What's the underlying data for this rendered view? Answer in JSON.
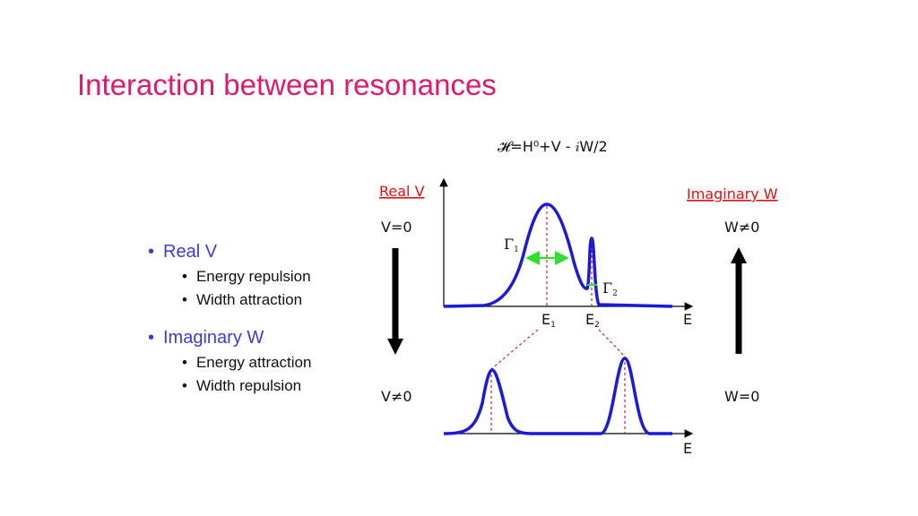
{
  "title": "Interaction between resonances",
  "bullets": [
    {
      "text": "Real V",
      "items": [
        "Energy repulsion",
        "Width attraction"
      ]
    },
    {
      "text": "Imaginary W",
      "items": [
        "Energy attraction",
        "Width repulsion"
      ]
    }
  ],
  "diagram": {
    "formula": "𝓗=H⁰+V - 𝑖W/2",
    "left_header": "Real V",
    "right_header": "Imaginary W",
    "left_top": "V=0",
    "left_bottom": "V≠0",
    "right_top": "W≠0",
    "right_bottom": "W=0",
    "gamma1": {
      "symbol": "Γ",
      "sub": "1"
    },
    "gamma2": {
      "symbol": "Γ",
      "sub": "2"
    },
    "e1": {
      "symbol": "E",
      "sub": "1"
    },
    "e2": {
      "symbol": "E",
      "sub": "2"
    },
    "axis_top": "E",
    "axis_bottom": "E"
  }
}
